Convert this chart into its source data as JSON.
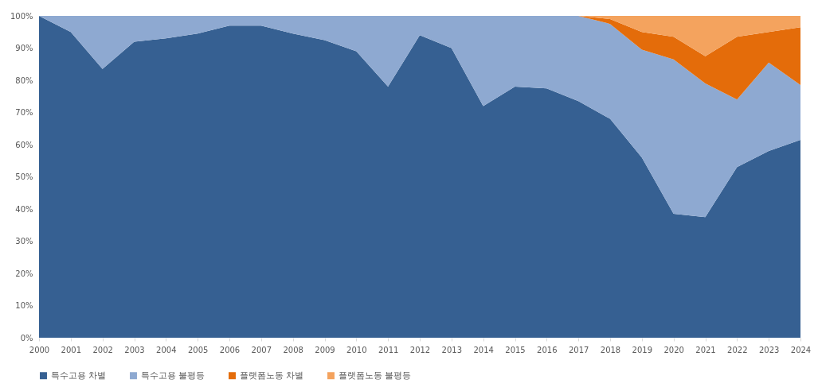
{
  "chart_data": {
    "type": "area",
    "stacked": true,
    "categories": [
      "2000",
      "2001",
      "2002",
      "2003",
      "2004",
      "2005",
      "2006",
      "2007",
      "2008",
      "2009",
      "2010",
      "2011",
      "2012",
      "2013",
      "2014",
      "2015",
      "2016",
      "2017",
      "2018",
      "2019",
      "2020",
      "2021",
      "2022",
      "2023",
      "2024"
    ],
    "series": [
      {
        "name": "특수고용 차별",
        "color": "#366092",
        "values": [
          100,
          95,
          83.5,
          92,
          93,
          94.5,
          97,
          97,
          94.5,
          92.5,
          89,
          78,
          94,
          90,
          72,
          78,
          77.5,
          73.5,
          68,
          56,
          38.5,
          37.5,
          53,
          58,
          61.5
        ]
      },
      {
        "name": "특수고용 불평등",
        "color": "#8ea9d1",
        "values": [
          0,
          5,
          16.5,
          8,
          7,
          5.5,
          3,
          3,
          5.5,
          7.5,
          11,
          22,
          6,
          10,
          28,
          22,
          22.5,
          26.5,
          29.5,
          33.5,
          48,
          41.5,
          21,
          27.5,
          17
        ]
      },
      {
        "name": "플랫폼노동 차별",
        "color": "#e46c0a",
        "values": [
          0,
          0,
          0,
          0,
          0,
          0,
          0,
          0,
          0,
          0,
          0,
          0,
          0,
          0,
          0,
          0,
          0,
          0,
          1.5,
          5.5,
          7,
          8.5,
          19.5,
          9.5,
          18
        ]
      },
      {
        "name": "플랫폼노동 불평등",
        "color": "#f4a35e",
        "values": [
          0,
          0,
          0,
          0,
          0,
          0,
          0,
          0,
          0,
          0,
          0,
          0,
          0,
          0,
          0,
          0,
          0,
          0,
          1,
          5,
          6.5,
          12.5,
          6.5,
          5,
          3.5
        ]
      }
    ],
    "ylim": [
      0,
      100
    ],
    "yticks": [
      {
        "value": 0,
        "label": "0%"
      },
      {
        "value": 10,
        "label": "10%"
      },
      {
        "value": 20,
        "label": "20%"
      },
      {
        "value": 30,
        "label": "30%"
      },
      {
        "value": 40,
        "label": "40%"
      },
      {
        "value": 50,
        "label": "50%"
      },
      {
        "value": 60,
        "label": "60%"
      },
      {
        "value": 70,
        "label": "70%"
      },
      {
        "value": 80,
        "label": "80%"
      },
      {
        "value": 90,
        "label": "90%"
      },
      {
        "value": 100,
        "label": "100%"
      }
    ],
    "grid": false,
    "legend": "bottom"
  }
}
